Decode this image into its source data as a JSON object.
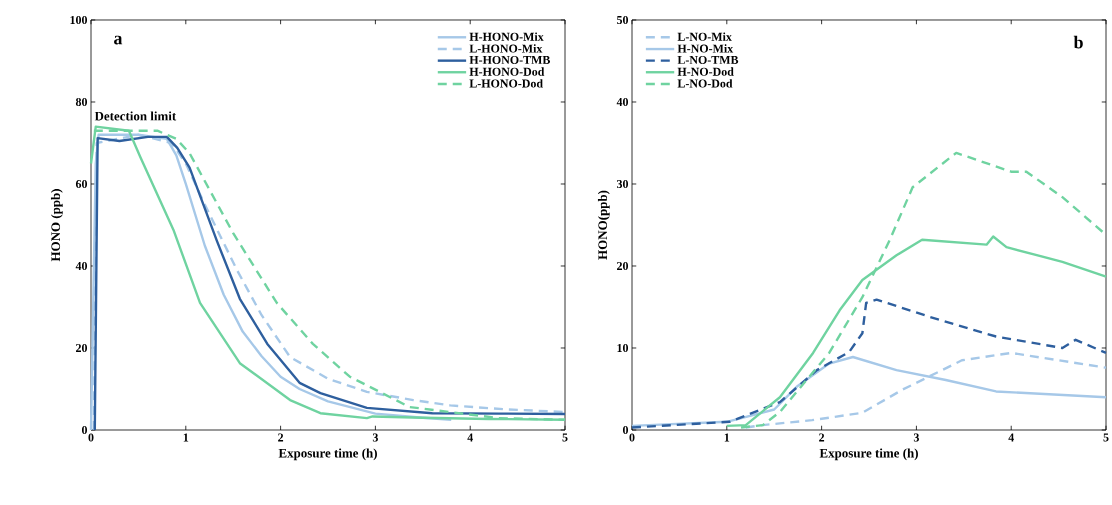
{
  "chart_data": [
    {
      "type": "line",
      "xlabel": "Exposure time (h)",
      "ylabel": "HONO (ppb)",
      "xlim": [
        0,
        5
      ],
      "ylim": [
        0,
        100
      ],
      "xticks": [
        0,
        1,
        2,
        3,
        4,
        5
      ],
      "yticks": [
        0,
        20,
        40,
        60,
        80,
        100
      ],
      "legend": "top right",
      "grid": false,
      "marker": "none",
      "annotations": [
        "a",
        "Detection limit"
      ],
      "series": [
        {
          "name": "H-HONO-Mix",
          "color": "#a6c8e8",
          "line_style": "solid",
          "x": [
            0,
            0.05,
            0.08,
            0.5,
            0.8,
            0.9,
            1.0,
            1.2,
            1.4,
            1.6,
            1.8,
            2.0,
            2.2,
            2.5,
            3.0,
            3.5,
            3.8
          ],
          "values": [
            0,
            65,
            72,
            72,
            71,
            67,
            60,
            45,
            33,
            24,
            18,
            13,
            10,
            7,
            4,
            3,
            2.5
          ]
        },
        {
          "name": "L-HONO-Mix",
          "color": "#a6c8e8",
          "line_style": "dashed",
          "x": [
            0.03,
            0.06,
            0.5,
            0.85,
            1.0,
            1.2,
            1.54,
            1.8,
            2.1,
            2.5,
            2.91,
            3.4,
            3.79,
            4.4,
            5
          ],
          "values": [
            0,
            70,
            72,
            70,
            65,
            55,
            39,
            28,
            17.8,
            12.5,
            9.3,
            7.3,
            6,
            5,
            4.4
          ]
        },
        {
          "name": "H-HONO-TMB",
          "color": "#2e5f9e",
          "line_style": "solid",
          "x": [
            0.04,
            0.07,
            0.3,
            0.6,
            0.8,
            0.91,
            1.04,
            1.33,
            1.57,
            1.86,
            2.2,
            2.42,
            2.91,
            3.6,
            4.3,
            5
          ],
          "values": [
            0,
            71.2,
            70.5,
            71.5,
            71.5,
            68.8,
            64,
            46,
            32,
            21,
            11.5,
            9,
            5.4,
            4.1,
            4,
            3.9
          ]
        },
        {
          "name": "H-HONO-Dod",
          "color": "#6fd3a0",
          "line_style": "solid",
          "x": [
            0,
            0.05,
            0.4,
            0.52,
            0.87,
            1.15,
            1.57,
            2.1,
            2.42,
            2.91,
            2.97,
            3.5,
            4.2,
            5
          ],
          "values": [
            65,
            74,
            73,
            66.6,
            48.8,
            31,
            16.3,
            7.3,
            4.1,
            2.9,
            3.3,
            3,
            2.7,
            2.5
          ]
        },
        {
          "name": "L-HONO-Dod",
          "color": "#6fd3a0",
          "line_style": "dashed",
          "x": [
            0.03,
            0.3,
            0.7,
            0.9,
            1.04,
            1.5,
            1.96,
            2.34,
            2.73,
            3.36,
            4.3,
            5
          ],
          "values": [
            73,
            73,
            73,
            71,
            67.5,
            48,
            31,
            21,
            13,
            5.6,
            2.9,
            2.5
          ]
        }
      ]
    },
    {
      "type": "line",
      "xlabel": "Exposure time (h)",
      "ylabel": "HONO(ppb)",
      "xlim": [
        0,
        5
      ],
      "ylim": [
        0,
        50
      ],
      "xticks": [
        0,
        1,
        2,
        3,
        4,
        5
      ],
      "yticks": [
        0,
        10,
        20,
        30,
        40,
        50
      ],
      "legend": "top left",
      "grid": false,
      "marker": "none",
      "annotations": [
        "b"
      ],
      "series": [
        {
          "name": "L-NO-Mix",
          "color": "#a6c8e8",
          "line_style": "dashed",
          "x": [
            1.2,
            1.38,
            1.9,
            2.43,
            2.85,
            3.48,
            4.0,
            5
          ],
          "values": [
            0.3,
            0.6,
            1.2,
            2.1,
            4.9,
            8.5,
            9.4,
            7.6
          ]
        },
        {
          "name": "H-NO-Mix",
          "color": "#a6c8e8",
          "line_style": "solid",
          "x": [
            0,
            1,
            1.5,
            1.74,
            2.08,
            2.33,
            2.79,
            3.31,
            3.84,
            5
          ],
          "values": [
            0.5,
            1,
            2.5,
            5.3,
            8.1,
            8.9,
            7.3,
            6.1,
            4.7,
            4.0
          ]
        },
        {
          "name": "L-NO-TMB",
          "color": "#2e5f9e",
          "line_style": "dashed",
          "x": [
            0,
            1.03,
            1.56,
            1.95,
            2.29,
            2.43,
            2.47,
            2.58,
            3.14,
            3.84,
            4.54,
            4.68,
            5
          ],
          "values": [
            0.3,
            1.0,
            3.4,
            7.3,
            9.5,
            11.8,
            15.5,
            15.9,
            13.8,
            11.4,
            10,
            11,
            9.4
          ]
        },
        {
          "name": "H-NO-Dod",
          "color": "#6fd3a0",
          "line_style": "solid",
          "x": [
            1.0,
            1.2,
            1.56,
            1.91,
            2.19,
            2.43,
            2.79,
            3.06,
            3.74,
            3.81,
            3.95,
            4.54,
            5
          ],
          "values": [
            0.5,
            0.6,
            4,
            9.4,
            14.6,
            18.3,
            21.3,
            23.2,
            22.6,
            23.6,
            22.3,
            20.5,
            18.7
          ]
        },
        {
          "name": "L-NO-Dod",
          "color": "#6fd3a0",
          "line_style": "dashed",
          "x": [
            1.15,
            1.38,
            1.56,
            2.08,
            2.43,
            2.72,
            2.96,
            3.42,
            4.0,
            4.16,
            4.54,
            5
          ],
          "values": [
            0.3,
            0.6,
            2.2,
            9.4,
            16.2,
            23.2,
            29.6,
            33.8,
            31.5,
            31.5,
            28.4,
            23.8
          ]
        }
      ]
    }
  ]
}
